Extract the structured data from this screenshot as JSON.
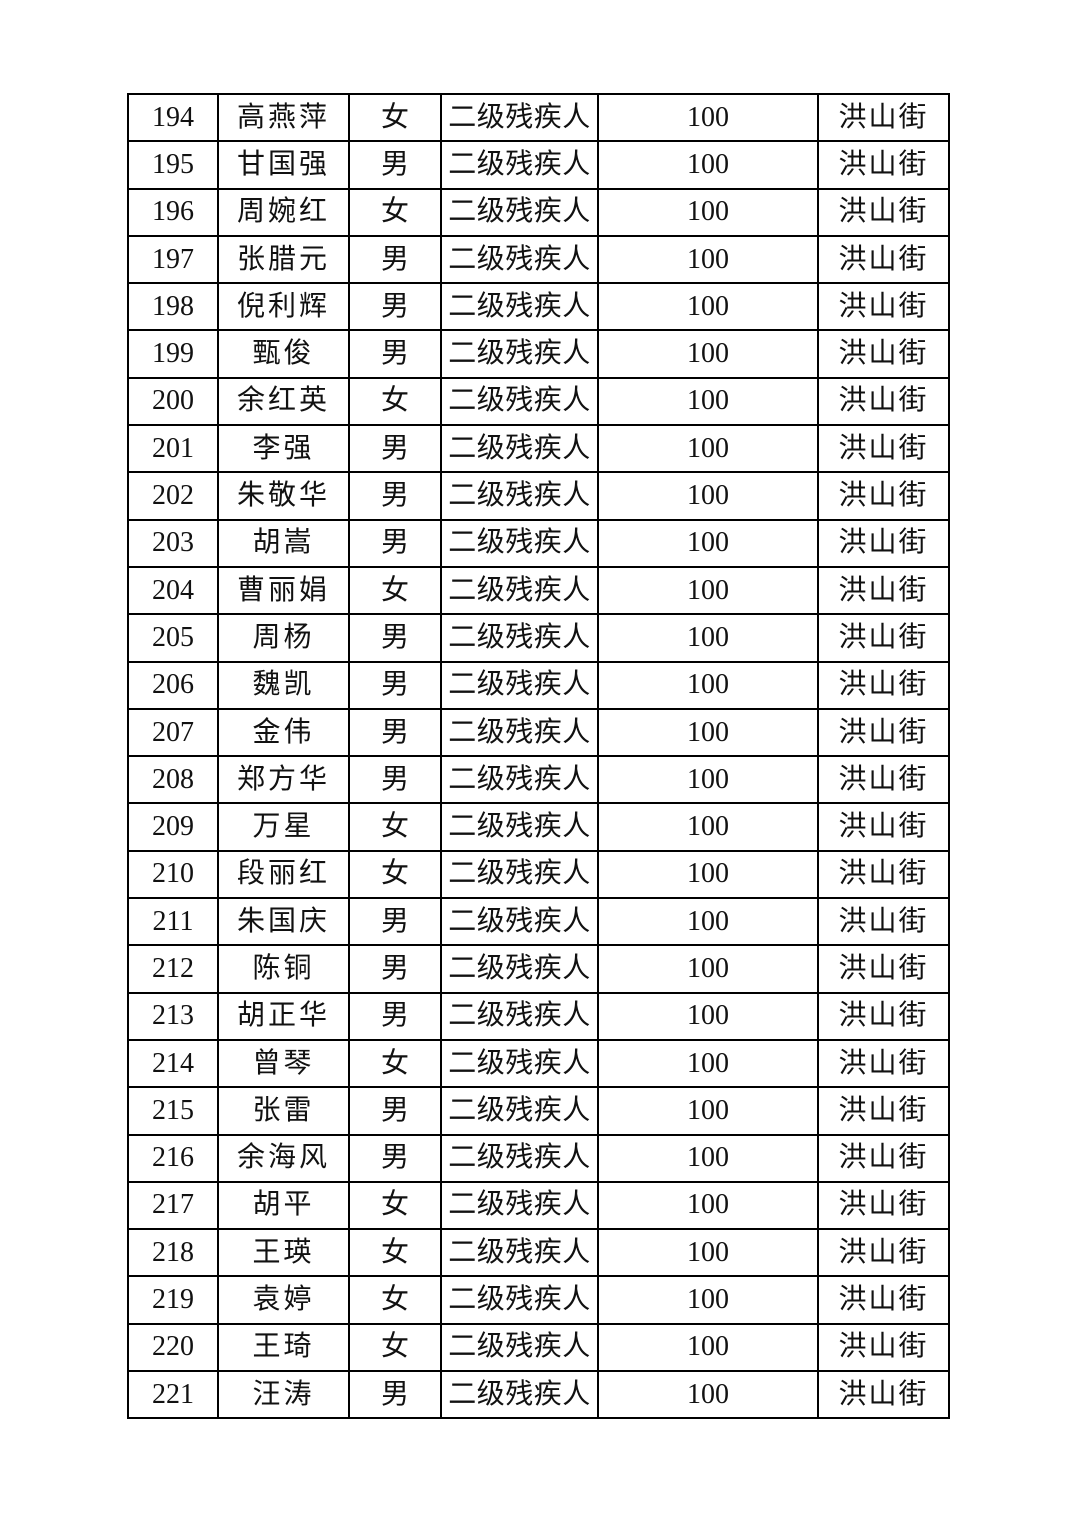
{
  "page": {
    "background_color": "#ffffff",
    "text_color": "#111111",
    "border_color": "#000000"
  },
  "table": {
    "columns": [
      {
        "key": "no"
      },
      {
        "key": "name"
      },
      {
        "key": "gender"
      },
      {
        "key": "category"
      },
      {
        "key": "amount"
      },
      {
        "key": "street"
      }
    ],
    "rows": [
      [
        "194",
        "高燕萍",
        "女",
        "二级残疾人",
        "100",
        "洪山街"
      ],
      [
        "195",
        "甘国强",
        "男",
        "二级残疾人",
        "100",
        "洪山街"
      ],
      [
        "196",
        "周婉红",
        "女",
        "二级残疾人",
        "100",
        "洪山街"
      ],
      [
        "197",
        "张腊元",
        "男",
        "二级残疾人",
        "100",
        "洪山街"
      ],
      [
        "198",
        "倪利辉",
        "男",
        "二级残疾人",
        "100",
        "洪山街"
      ],
      [
        "199",
        "甄俊",
        "男",
        "二级残疾人",
        "100",
        "洪山街"
      ],
      [
        "200",
        "余红英",
        "女",
        "二级残疾人",
        "100",
        "洪山街"
      ],
      [
        "201",
        "李强",
        "男",
        "二级残疾人",
        "100",
        "洪山街"
      ],
      [
        "202",
        "朱敬华",
        "男",
        "二级残疾人",
        "100",
        "洪山街"
      ],
      [
        "203",
        "胡嵩",
        "男",
        "二级残疾人",
        "100",
        "洪山街"
      ],
      [
        "204",
        "曹丽娟",
        "女",
        "二级残疾人",
        "100",
        "洪山街"
      ],
      [
        "205",
        "周杨",
        "男",
        "二级残疾人",
        "100",
        "洪山街"
      ],
      [
        "206",
        "魏凯",
        "男",
        "二级残疾人",
        "100",
        "洪山街"
      ],
      [
        "207",
        "金伟",
        "男",
        "二级残疾人",
        "100",
        "洪山街"
      ],
      [
        "208",
        "郑方华",
        "男",
        "二级残疾人",
        "100",
        "洪山街"
      ],
      [
        "209",
        "万星",
        "女",
        "二级残疾人",
        "100",
        "洪山街"
      ],
      [
        "210",
        "段丽红",
        "女",
        "二级残疾人",
        "100",
        "洪山街"
      ],
      [
        "211",
        "朱国庆",
        "男",
        "二级残疾人",
        "100",
        "洪山街"
      ],
      [
        "212",
        "陈铜",
        "男",
        "二级残疾人",
        "100",
        "洪山街"
      ],
      [
        "213",
        "胡正华",
        "男",
        "二级残疾人",
        "100",
        "洪山街"
      ],
      [
        "214",
        "曾琴",
        "女",
        "二级残疾人",
        "100",
        "洪山街"
      ],
      [
        "215",
        "张雷",
        "男",
        "二级残疾人",
        "100",
        "洪山街"
      ],
      [
        "216",
        "余海风",
        "男",
        "二级残疾人",
        "100",
        "洪山街"
      ],
      [
        "217",
        "胡平",
        "女",
        "二级残疾人",
        "100",
        "洪山街"
      ],
      [
        "218",
        "王瑛",
        "女",
        "二级残疾人",
        "100",
        "洪山街"
      ],
      [
        "219",
        "袁婷",
        "女",
        "二级残疾人",
        "100",
        "洪山街"
      ],
      [
        "220",
        "王琦",
        "女",
        "二级残疾人",
        "100",
        "洪山街"
      ],
      [
        "221",
        "汪涛",
        "男",
        "二级残疾人",
        "100",
        "洪山街"
      ]
    ]
  }
}
